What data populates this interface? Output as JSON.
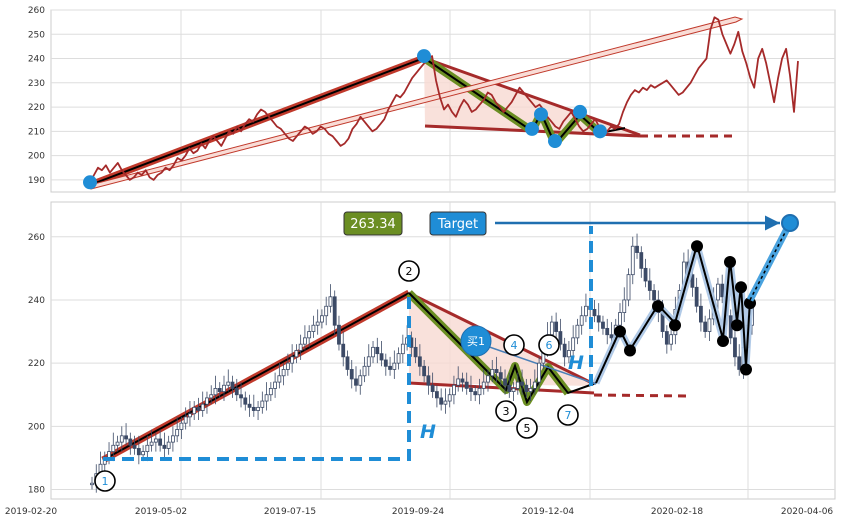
{
  "chart_data": [
    {
      "type": "line",
      "panel": "top",
      "ylim": [
        185,
        260
      ],
      "yticks": [
        190,
        200,
        210,
        220,
        230,
        240,
        250,
        260
      ],
      "grid": true,
      "colors": {
        "line": "#a52a2a",
        "trend": "#c0392b",
        "wave": "#6b8e23",
        "marker": "#1f8dd6",
        "fill": "#f7d9d2"
      },
      "series": [
        {
          "values": [
            189,
            192,
            195,
            194,
            196,
            193,
            195,
            197,
            194,
            192,
            190,
            191,
            193,
            192,
            194,
            191,
            190,
            192,
            193,
            195,
            194,
            196,
            199,
            198,
            200,
            203,
            201,
            202,
            205,
            203,
            206,
            208,
            206,
            204,
            207,
            210,
            209,
            212,
            210,
            213,
            215,
            214,
            217,
            219,
            218,
            216,
            214,
            212,
            211,
            209,
            207,
            206,
            208,
            210,
            212,
            211,
            209,
            210,
            212,
            211,
            209,
            208,
            206,
            204,
            205,
            207,
            211,
            213,
            216,
            214,
            212,
            210,
            211,
            213,
            215,
            219,
            222,
            225,
            224,
            226,
            229,
            232,
            234,
            236,
            238,
            240,
            241,
            231,
            224,
            219,
            221,
            218,
            216,
            220,
            223,
            221,
            218,
            219,
            221,
            223,
            226,
            225,
            222,
            220,
            218,
            220,
            222,
            225,
            228,
            226,
            224,
            222,
            220,
            221,
            219,
            216,
            214,
            212,
            211,
            214,
            216,
            218,
            215,
            212,
            210,
            211,
            213,
            215,
            212,
            209,
            210,
            212,
            211,
            213,
            218,
            222,
            225,
            227,
            226,
            228,
            227,
            229,
            228,
            229,
            230,
            231,
            229,
            227,
            225,
            226,
            228,
            230,
            233,
            236,
            238,
            240,
            252,
            257,
            256,
            250,
            246,
            242,
            246,
            251,
            243,
            238,
            232,
            228,
            240,
            244,
            238,
            230,
            222,
            232,
            240,
            244,
            233,
            218,
            239
          ]
        }
      ],
      "markers": [
        189,
        241,
        211,
        217,
        206,
        218,
        210
      ]
    },
    {
      "type": "candlestick",
      "panel": "bottom",
      "ylim": [
        177,
        271
      ],
      "yticks": [
        180,
        200,
        220,
        240,
        260
      ],
      "x_tick_labels": [
        "2019-02-20",
        "2019-05-02",
        "2019-07-15",
        "2019-09-24",
        "2019-12-04",
        "2020-02-18",
        "2020-04-06"
      ],
      "grid": true,
      "series": [
        {
          "values": [
            182,
            185,
            188,
            190,
            192,
            194,
            195,
            197,
            196,
            194,
            193,
            191,
            192,
            194,
            195,
            196,
            194,
            193,
            195,
            197,
            199,
            201,
            203,
            204,
            206,
            205,
            207,
            209,
            210,
            212,
            211,
            213,
            214,
            212,
            210,
            209,
            207,
            206,
            205,
            206,
            208,
            210,
            212,
            214,
            216,
            218,
            220,
            222,
            224,
            226,
            228,
            230,
            232,
            233,
            235,
            238,
            241,
            232,
            226,
            222,
            218,
            215,
            213,
            216,
            219,
            222,
            225,
            223,
            221,
            219,
            218,
            220,
            223,
            226,
            228,
            225,
            222,
            219,
            216,
            213,
            211,
            209,
            207,
            208,
            210,
            213,
            215,
            214,
            212,
            211,
            210,
            212,
            214,
            216,
            218,
            217,
            215,
            213,
            211,
            212,
            214,
            213,
            211,
            212,
            214,
            220,
            225,
            229,
            233,
            230,
            226,
            222,
            224,
            228,
            232,
            235,
            238,
            237,
            235,
            233,
            231,
            229,
            228,
            232,
            236,
            240,
            248,
            257,
            255,
            250,
            246,
            243,
            240,
            236,
            230,
            226,
            229,
            237,
            243,
            252,
            248,
            244,
            238,
            233,
            230,
            234,
            240,
            245,
            241,
            235,
            228,
            222,
            218,
            225,
            232,
            239
          ]
        }
      ],
      "markers": [
        257,
        230,
        224,
        238,
        232,
        227,
        252,
        232,
        244,
        218,
        239
      ],
      "wave_labels": [
        "1",
        "2",
        "3",
        "4",
        "5",
        "6",
        "7"
      ],
      "annotations": {
        "target_value": "263.34",
        "target_label": "Target",
        "buy_label": "买1",
        "height_label": "H"
      }
    }
  ]
}
